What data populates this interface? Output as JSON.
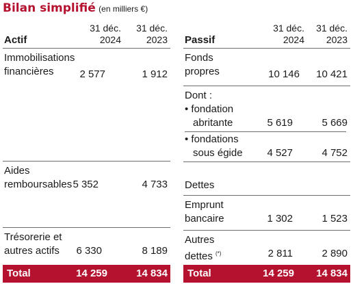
{
  "title": {
    "main": "Bilan simplifié",
    "unit": "(en milliers €)"
  },
  "columns": {
    "d2024_a": "31 déc.",
    "d2024_b": "2024",
    "d2023_a": "31 déc.",
    "d2023_b": "2023"
  },
  "actif": {
    "header": "Actif",
    "rows": [
      {
        "label1": "Immobilisations",
        "label2": "financières",
        "v2024": "2 577",
        "v2023": "1 912"
      },
      {
        "label1": "Aides",
        "label2": "remboursables",
        "v2024": "5 352",
        "v2023": "4 733"
      },
      {
        "label1": "Trésorerie et",
        "label2": "autres actifs",
        "v2024": "6 330",
        "v2023": "8 189"
      }
    ],
    "total": {
      "label": "Total",
      "v2024": "14 259",
      "v2023": "14 834"
    }
  },
  "passif": {
    "header": "Passif",
    "fonds": {
      "label1": "Fonds",
      "label2": "propres",
      "v2024": "10 146",
      "v2023": "10 421"
    },
    "dont": "Dont :",
    "abritante": {
      "label1": "• fondation",
      "label2": "abritante",
      "v2024": "5 619",
      "v2023": "5 669"
    },
    "egide": {
      "label1": "• fondations",
      "label2": "sous égide",
      "v2024": "4 527",
      "v2023": "4 752"
    },
    "dettes": "Dettes",
    "emprunt": {
      "label1": "Emprunt",
      "label2": "bancaire",
      "v2024": "1 302",
      "v2023": "1 523"
    },
    "autres": {
      "label1": "Autres",
      "label2": "dettes",
      "note": "(*)",
      "v2024": "2 811",
      "v2023": "2 890"
    },
    "total": {
      "label": "Total",
      "v2024": "14 259",
      "v2023": "14 834"
    }
  }
}
